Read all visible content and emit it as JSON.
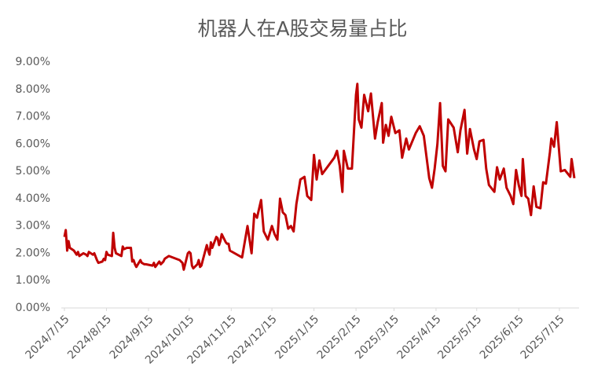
{
  "chart_data": {
    "type": "line",
    "title": "机器人在A股交易量占比",
    "x": [
      "2024/7/15",
      "2024/7/16",
      "2024/7/17",
      "2024/7/18",
      "2024/7/19",
      "2024/7/22",
      "2024/7/24",
      "2024/7/25",
      "2024/7/26",
      "2024/7/29",
      "2024/7/31",
      "2024/8/1",
      "2024/8/2",
      "2024/8/5",
      "2024/8/6",
      "2024/8/8",
      "2024/8/9",
      "2024/8/12",
      "2024/8/13",
      "2024/8/14",
      "2024/8/15",
      "2024/8/16",
      "2024/8/19",
      "2024/8/20",
      "2024/8/21",
      "2024/8/22",
      "2024/8/26",
      "2024/8/27",
      "2024/8/28",
      "2024/8/30",
      "2024/9/2",
      "2024/9/3",
      "2024/9/4",
      "2024/9/5",
      "2024/9/6",
      "2024/9/9",
      "2024/9/10",
      "2024/9/12",
      "2024/9/13",
      "2024/9/18",
      "2024/9/19",
      "2024/9/20",
      "2024/9/23",
      "2024/9/24",
      "2024/9/26",
      "2024/9/27",
      "2024/9/30",
      "2024/10/8",
      "2024/10/9",
      "2024/10/10",
      "2024/10/11",
      "2024/10/14",
      "2024/10/15",
      "2024/10/16",
      "2024/10/17",
      "2024/10/18",
      "2024/10/21",
      "2024/10/22",
      "2024/10/23",
      "2024/10/24",
      "2024/10/25",
      "2024/10/28",
      "2024/10/29",
      "2024/10/30",
      "2024/10/31",
      "2024/11/1",
      "2024/11/4",
      "2024/11/5",
      "2024/11/6",
      "2024/11/7",
      "2024/11/8",
      "2024/11/11",
      "2024/11/12",
      "2024/11/13",
      "2024/11/14",
      "2024/11/23",
      "2024/11/27",
      "2024/11/30",
      "2024/12/2",
      "2024/12/4",
      "2024/12/7",
      "2024/12/9",
      "2024/12/12",
      "2024/12/15",
      "2024/12/17",
      "2024/12/19",
      "2024/12/21",
      "2024/12/23",
      "2024/12/25",
      "2024/12/27",
      "2024/12/29",
      "2024/12/31",
      "2025/1/2",
      "2025/1/5",
      "2025/1/8",
      "2025/1/10",
      "2025/1/13",
      "2025/1/15",
      "2025/1/17",
      "2025/1/19",
      "2025/1/21",
      "2025/1/30",
      "2025/2/1",
      "2025/2/3",
      "2025/2/5",
      "2025/2/6",
      "2025/2/9",
      "2025/2/12",
      "2025/2/15",
      "2025/2/16",
      "2025/2/17",
      "2025/2/19",
      "2025/2/21",
      "2025/2/24",
      "2025/2/26",
      "2025/3/1",
      "2025/3/3",
      "2025/3/6",
      "2025/3/7",
      "2025/3/9",
      "2025/3/11",
      "2025/3/13",
      "2025/3/16",
      "2025/3/19",
      "2025/3/21",
      "2025/3/24",
      "2025/3/26",
      "2025/3/31",
      "2025/4/3",
      "2025/4/6",
      "2025/4/10",
      "2025/4/12",
      "2025/4/14",
      "2025/4/16",
      "2025/4/18",
      "2025/4/20",
      "2025/4/22",
      "2025/4/24",
      "2025/4/28",
      "2025/5/1",
      "2025/5/3",
      "2025/5/6",
      "2025/5/8",
      "2025/5/10",
      "2025/5/13",
      "2025/5/15",
      "2025/5/17",
      "2025/5/20",
      "2025/5/22",
      "2025/5/24",
      "2025/5/28",
      "2025/5/30",
      "2025/6/1",
      "2025/6/4",
      "2025/6/6",
      "2025/6/9",
      "2025/6/11",
      "2025/6/13",
      "2025/6/15",
      "2025/6/17",
      "2025/6/18",
      "2025/6/20",
      "2025/6/22",
      "2025/6/24",
      "2025/6/26",
      "2025/6/28",
      "2025/7/1",
      "2025/7/3",
      "2025/7/5",
      "2025/7/8",
      "2025/7/9",
      "2025/7/11",
      "2025/7/13",
      "2025/7/16",
      "2025/7/19",
      "2025/7/23",
      "2025/7/24",
      "2025/7/26"
    ],
    "series": [
      {
        "color": "#c00000",
        "values": [
          2.6,
          2.85,
          2.1,
          2.45,
          2.2,
          2.1,
          1.95,
          2.05,
          1.9,
          2.0,
          1.95,
          1.9,
          2.05,
          1.95,
          2.0,
          1.75,
          1.65,
          1.7,
          1.8,
          1.75,
          2.05,
          1.95,
          1.9,
          2.75,
          2.2,
          2.0,
          1.9,
          2.25,
          2.15,
          2.2,
          2.2,
          1.7,
          1.75,
          1.6,
          1.5,
          1.75,
          1.65,
          1.6,
          1.6,
          1.55,
          1.65,
          1.5,
          1.7,
          1.6,
          1.7,
          1.8,
          1.9,
          1.75,
          1.7,
          1.65,
          1.4,
          2.0,
          2.05,
          2.0,
          1.55,
          1.45,
          1.6,
          1.75,
          1.5,
          1.55,
          1.75,
          2.3,
          2.1,
          1.95,
          2.4,
          2.2,
          2.6,
          2.55,
          2.3,
          2.45,
          2.7,
          2.4,
          2.35,
          2.35,
          2.1,
          1.85,
          3.0,
          2.0,
          3.45,
          3.3,
          3.95,
          2.8,
          2.5,
          3.0,
          2.7,
          2.5,
          4.0,
          3.5,
          3.4,
          2.9,
          3.0,
          2.8,
          3.8,
          4.7,
          4.8,
          4.1,
          3.95,
          5.6,
          4.7,
          5.4,
          4.9,
          5.5,
          5.75,
          5.2,
          4.25,
          5.75,
          5.1,
          5.1,
          7.8,
          8.2,
          6.9,
          6.6,
          7.8,
          7.2,
          7.85,
          6.2,
          6.8,
          7.5,
          6.05,
          6.7,
          6.3,
          7.0,
          6.4,
          6.5,
          5.5,
          6.2,
          5.8,
          6.4,
          6.65,
          6.3,
          4.75,
          4.4,
          5.1,
          6.0,
          7.5,
          5.2,
          5.0,
          6.9,
          6.6,
          5.7,
          6.5,
          7.25,
          5.65,
          6.55,
          5.8,
          5.45,
          6.1,
          6.15,
          5.1,
          4.5,
          4.25,
          5.15,
          4.7,
          5.1,
          4.4,
          4.1,
          3.8,
          5.05,
          4.5,
          4.1,
          5.45,
          4.1,
          4.0,
          3.4,
          4.45,
          3.7,
          3.65,
          4.6,
          4.55,
          5.7,
          6.2,
          5.9,
          6.8,
          5.0,
          5.05,
          4.8,
          5.45,
          4.75
        ]
      }
    ],
    "xlim": [
      "2024/7/15",
      "2025/7/26"
    ],
    "xticks": [
      "2024/7/15",
      "2024/8/15",
      "2024/9/15",
      "2024/10/15",
      "2024/11/15",
      "2024/12/15",
      "2025/1/15",
      "2025/2/15",
      "2025/3/15",
      "2025/4/15",
      "2025/5/15",
      "2025/6/15",
      "2025/7/15"
    ],
    "ylim": [
      0,
      9
    ],
    "yticks": [
      {
        "value": 0,
        "label": "0.00%"
      },
      {
        "value": 1,
        "label": "1.00%"
      },
      {
        "value": 2,
        "label": "2.00%"
      },
      {
        "value": 3,
        "label": "3.00%"
      },
      {
        "value": 4,
        "label": "4.00%"
      },
      {
        "value": 5,
        "label": "5.00%"
      },
      {
        "value": 6,
        "label": "6.00%"
      },
      {
        "value": 7,
        "label": "7.00%"
      },
      {
        "value": 8,
        "label": "8.00%"
      },
      {
        "value": 9,
        "label": "9.00%"
      }
    ],
    "grid": false
  }
}
